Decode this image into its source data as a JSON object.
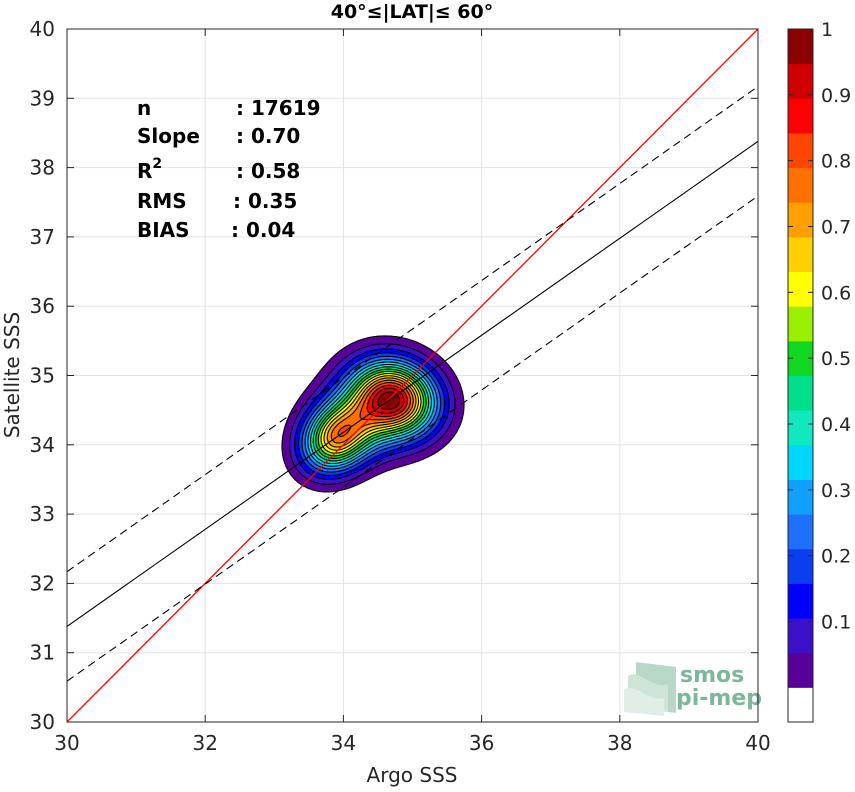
{
  "chart_data": {
    "type": "scatter",
    "title": "40°≤|LAT|≤ 60°",
    "xlabel": "Argo SSS",
    "ylabel": "Satellite SSS",
    "xlim": [
      30,
      40
    ],
    "ylim": [
      30,
      40
    ],
    "xticks": [
      "30",
      "32",
      "34",
      "36",
      "38",
      "40"
    ],
    "yticks": [
      "30",
      "31",
      "32",
      "33",
      "34",
      "35",
      "36",
      "37",
      "38",
      "39",
      "40"
    ],
    "grid": true,
    "stats": [
      {
        "label": "n",
        "value": ": 17619"
      },
      {
        "label": "Slope",
        "value": ": 0.70"
      },
      {
        "label": "R",
        "sup": "2",
        "value": ": 0.58"
      },
      {
        "label": "RMS",
        "value": ": 0.35"
      },
      {
        "label": "BIAS",
        "value": ": 0.04"
      }
    ],
    "lines": {
      "identity": {
        "color": "#ff0000",
        "points": [
          [
            30,
            30
          ],
          [
            40,
            40
          ]
        ]
      },
      "fit": {
        "color": "#000000",
        "slope": 0.7,
        "intercept": 10.38
      },
      "fit_band_offset": 0.79
    },
    "density": {
      "description_source": "normalized 2D density contours",
      "levels": [
        0.05,
        0.1,
        0.15,
        0.2,
        0.25,
        0.3,
        0.35,
        0.4,
        0.45,
        0.5,
        0.55,
        0.6,
        0.65,
        0.7,
        0.75,
        0.8,
        0.85,
        0.9,
        0.95
      ],
      "peaks": [
        {
          "x": 34.73,
          "y": 34.68,
          "value": 1.0
        },
        {
          "x": 33.85,
          "y": 34.08,
          "value": 0.72
        }
      ]
    },
    "colorbar": {
      "ticks": [
        "0.1",
        "0.2",
        "0.3",
        "0.4",
        "0.5",
        "0.6",
        "0.7",
        "0.8",
        "0.9",
        "1"
      ],
      "colors": [
        "#ffffff",
        "#5a009a",
        "#3a10c8",
        "#0000ff",
        "#0a3ff0",
        "#1f70ff",
        "#10a0ff",
        "#00d7ff",
        "#10e8c0",
        "#00e08a",
        "#10d820",
        "#9af000",
        "#ffff00",
        "#ffd000",
        "#ffa000",
        "#ff7000",
        "#ff4500",
        "#ff0000",
        "#d00000",
        "#8b0000"
      ]
    }
  },
  "watermark": {
    "line1": "smos",
    "line2": "pi-mep"
  }
}
